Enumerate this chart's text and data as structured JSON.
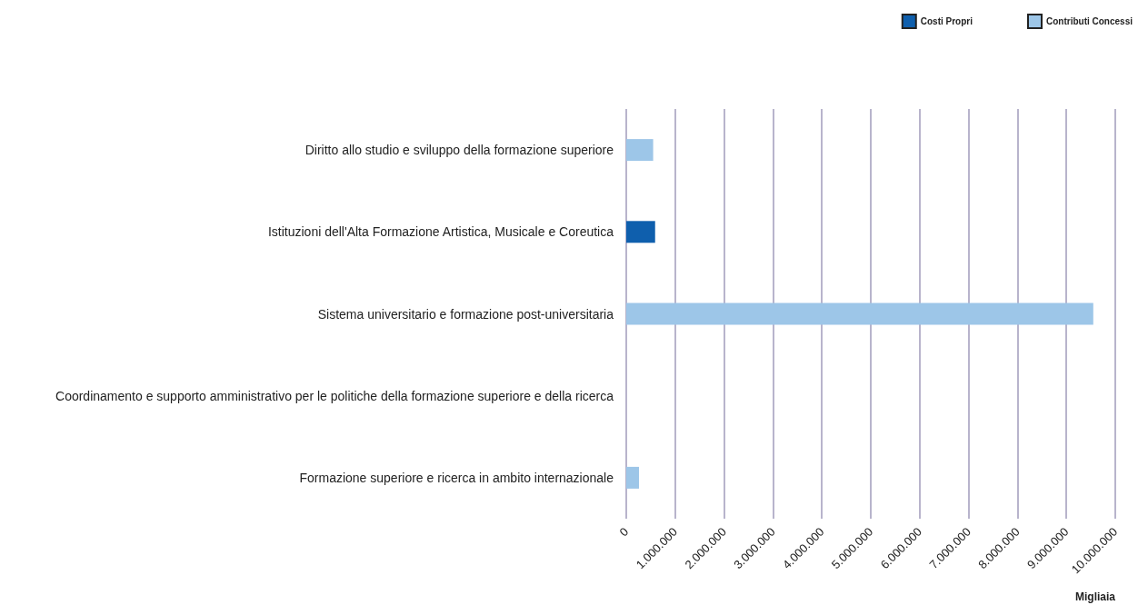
{
  "chart_data": {
    "type": "bar",
    "orientation": "horizontal",
    "stacked": true,
    "categories": [
      "Diritto allo studio e sviluppo della formazione superiore",
      "Istituzioni dell'Alta Formazione Artistica, Musicale e Coreutica",
      "Sistema universitario e formazione post-universitaria",
      "Coordinamento e supporto amministrativo per le politiche della formazione superiore e della ricerca",
      "Formazione superiore e ricerca in ambito internazionale"
    ],
    "series": [
      {
        "name": "Costi Propri",
        "color": "#0f5fad",
        "values": [
          null,
          590000,
          null,
          null,
          null
        ]
      },
      {
        "name": "Contributi Concessi",
        "color": "#9dc6e8",
        "values": [
          550000,
          null,
          9550000,
          null,
          260000
        ]
      }
    ],
    "xlabel": "Migliaia",
    "xlim": [
      0,
      10000000
    ],
    "xticks": [
      {
        "value": 0,
        "label": "0"
      },
      {
        "value": 1000000,
        "label": "1.000.000"
      },
      {
        "value": 2000000,
        "label": "2.000.000"
      },
      {
        "value": 3000000,
        "label": "3.000.000"
      },
      {
        "value": 4000000,
        "label": "4.000.000"
      },
      {
        "value": 5000000,
        "label": "5.000.000"
      },
      {
        "value": 6000000,
        "label": "6.000.000"
      },
      {
        "value": 7000000,
        "label": "7.000.000"
      },
      {
        "value": 8000000,
        "label": "8.000.000"
      },
      {
        "value": 9000000,
        "label": "9.000.000"
      },
      {
        "value": 10000000,
        "label": "10.000.000"
      }
    ],
    "grid": "x",
    "legend": "top right"
  }
}
